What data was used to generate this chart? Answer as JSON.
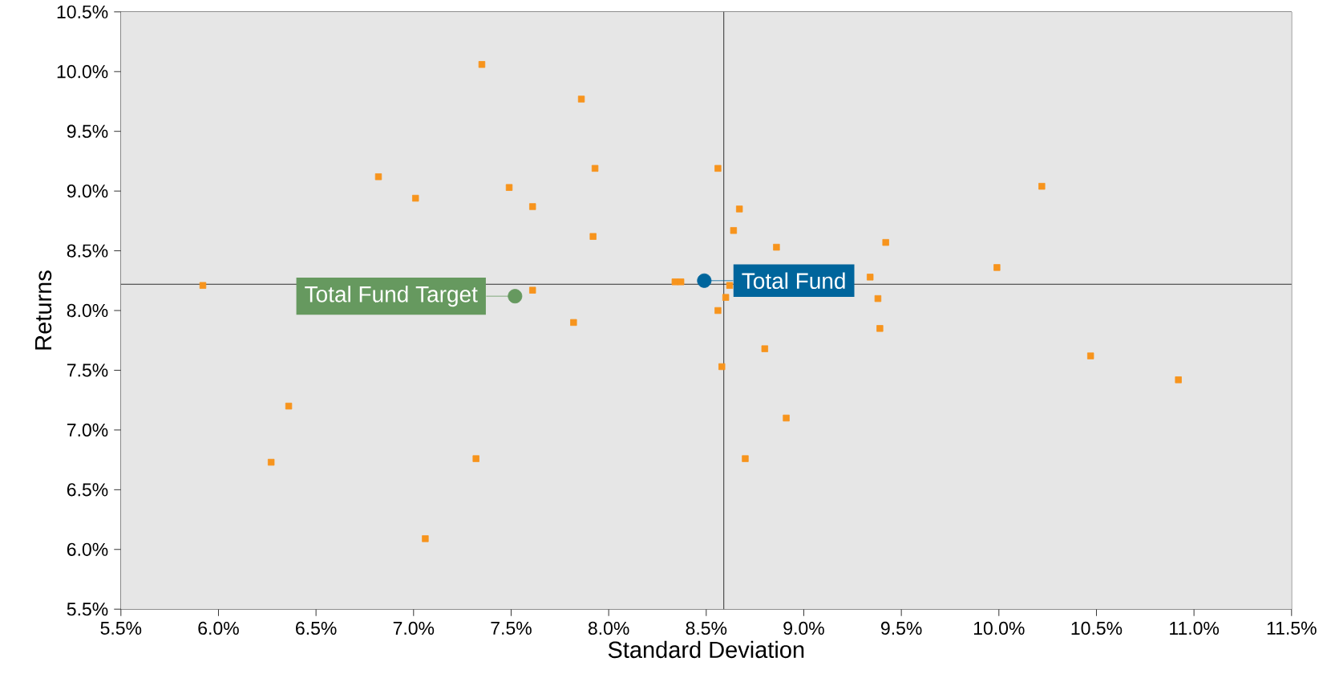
{
  "chart_data": {
    "type": "scatter",
    "xlabel": "Standard Deviation",
    "ylabel": "Returns",
    "xlim": [
      5.5,
      11.5
    ],
    "ylim": [
      5.5,
      10.5
    ],
    "xticks": [
      {
        "value": 5.5,
        "label": "5.5%"
      },
      {
        "value": 6.0,
        "label": "6.0%"
      },
      {
        "value": 6.5,
        "label": "6.5%"
      },
      {
        "value": 7.0,
        "label": "7.0%"
      },
      {
        "value": 7.5,
        "label": "7.5%"
      },
      {
        "value": 8.0,
        "label": "8.0%"
      },
      {
        "value": 8.5,
        "label": "8.5%"
      },
      {
        "value": 9.0,
        "label": "9.0%"
      },
      {
        "value": 9.5,
        "label": "9.5%"
      },
      {
        "value": 10.0,
        "label": "10.0%"
      },
      {
        "value": 10.5,
        "label": "10.5%"
      },
      {
        "value": 11.0,
        "label": "11.0%"
      },
      {
        "value": 11.5,
        "label": "11.5%"
      }
    ],
    "yticks": [
      {
        "value": 5.5,
        "label": "5.5%"
      },
      {
        "value": 6.0,
        "label": "6.0%"
      },
      {
        "value": 6.5,
        "label": "6.5%"
      },
      {
        "value": 7.0,
        "label": "7.0%"
      },
      {
        "value": 7.5,
        "label": "7.5%"
      },
      {
        "value": 8.0,
        "label": "8.0%"
      },
      {
        "value": 8.5,
        "label": "8.5%"
      },
      {
        "value": 9.0,
        "label": "9.0%"
      },
      {
        "value": 9.5,
        "label": "9.5%"
      },
      {
        "value": 10.0,
        "label": "10.0%"
      },
      {
        "value": 10.5,
        "label": "10.5%"
      }
    ],
    "grid": false,
    "annotations": [
      {
        "text": "Total Fund",
        "x": 8.49,
        "y": 8.25
      },
      {
        "text": "Total Fund Target",
        "x": 7.52,
        "y": 8.12
      }
    ],
    "ref_lines": [
      {
        "axis": "x",
        "value": 8.59,
        "color": "#000000"
      },
      {
        "axis": "y",
        "value": 8.22,
        "color": "#000000"
      }
    ],
    "series": [
      {
        "color": "#f7941d",
        "marker": "square",
        "x": [
          7.35,
          7.86,
          7.93,
          8.56,
          6.82,
          7.49,
          7.01,
          7.61,
          8.67,
          8.64,
          7.92,
          8.86,
          9.42,
          10.22,
          9.99,
          5.92,
          8.34,
          8.37,
          8.62,
          7.61,
          8.6,
          9.34,
          9.38,
          8.56,
          9.39,
          7.82,
          8.8,
          10.47,
          8.58,
          10.92,
          6.36,
          8.91,
          6.27,
          7.32,
          8.7,
          7.06
        ],
        "values": [
          10.06,
          9.77,
          9.19,
          9.19,
          9.12,
          9.03,
          8.94,
          8.87,
          8.85,
          8.67,
          8.62,
          8.53,
          8.57,
          9.04,
          8.36,
          8.21,
          8.24,
          8.24,
          8.21,
          8.17,
          8.11,
          8.28,
          8.1,
          8.0,
          7.85,
          7.9,
          7.68,
          7.62,
          7.53,
          7.42,
          7.2,
          7.1,
          6.73,
          6.76,
          6.76,
          6.09
        ]
      },
      {
        "color": "#00659c",
        "marker": "circle",
        "x": [
          8.49
        ],
        "values": [
          8.25
        ]
      },
      {
        "color": "#66995f",
        "marker": "circle",
        "x": [
          7.52
        ],
        "values": [
          8.12
        ]
      }
    ]
  }
}
